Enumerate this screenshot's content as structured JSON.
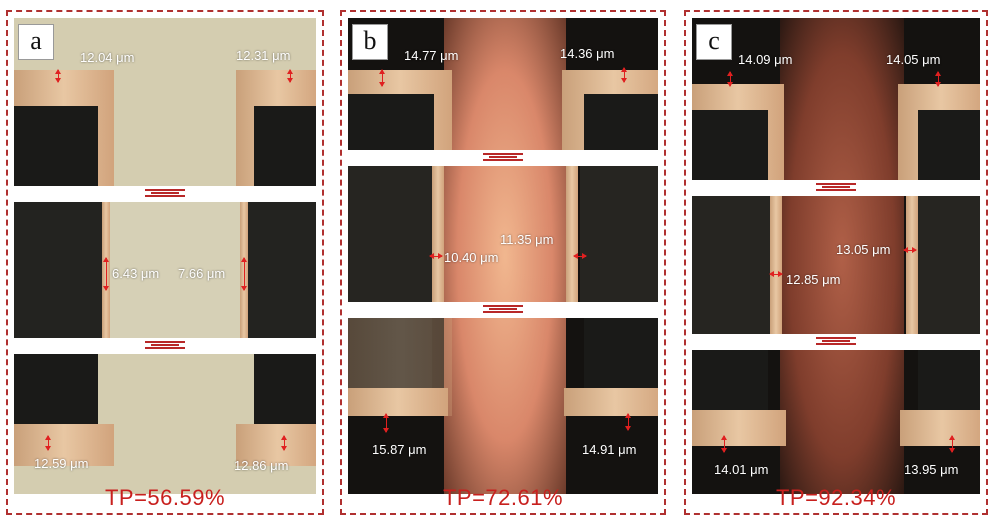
{
  "panels": [
    {
      "letter": "a",
      "tp": "TP=56.59%",
      "top_left": "12.04 μm",
      "top_right": "12.31 μm",
      "mid_left": "6.43 μm",
      "mid_right": "7.66 μm",
      "bot_left": "12.59 μm",
      "bot_right": "12.86 μm"
    },
    {
      "letter": "b",
      "tp": "TP=72.61%",
      "top_left": "14.77 μm",
      "top_right": "14.36 μm",
      "mid_left": "10.40 μm",
      "mid_right": "11.35 μm",
      "bot_left": "15.87 μm",
      "bot_right": "14.91 μm"
    },
    {
      "letter": "c",
      "tp": "TP=92.34%",
      "top_left": "14.09 μm",
      "top_right": "14.05 μm",
      "mid_left": "12.85 μm",
      "mid_right": "13.05 μm",
      "bot_left": "14.01 μm",
      "bot_right": "13.95 μm"
    }
  ],
  "colors": {
    "accent": "#c8201e",
    "copper": "#e0bb95",
    "resin_dark": "#1a1a18"
  }
}
